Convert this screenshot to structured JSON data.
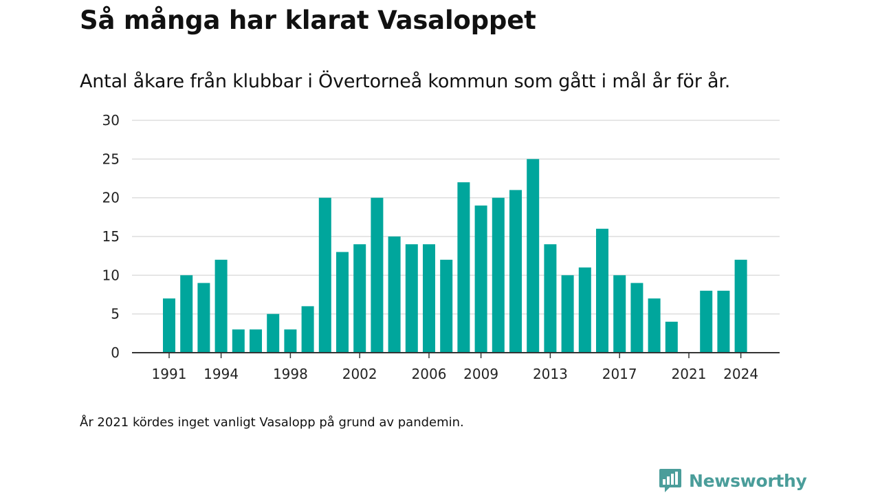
{
  "title": "Så många har klarat Vasaloppet",
  "subtitle": "Antal åkare från klubbar i Övertorneå kommun som gått i mål år för år.",
  "note": "År 2021 kördes inget vanligt Vasalopp på grund av pandemin.",
  "brand": {
    "name": "Newsworthy",
    "icon": "newsworthy-logo-icon",
    "color": "#4a9d9a"
  },
  "chart_data": {
    "type": "bar",
    "x": [
      1991,
      1992,
      1993,
      1994,
      1995,
      1996,
      1997,
      1998,
      1999,
      2000,
      2001,
      2002,
      2003,
      2004,
      2005,
      2006,
      2007,
      2008,
      2009,
      2010,
      2011,
      2012,
      2013,
      2014,
      2015,
      2016,
      2017,
      2018,
      2019,
      2020,
      2021,
      2022,
      2023,
      2024
    ],
    "values": [
      7,
      10,
      9,
      12,
      3,
      3,
      5,
      3,
      6,
      20,
      13,
      14,
      20,
      15,
      14,
      14,
      12,
      22,
      19,
      20,
      21,
      25,
      14,
      10,
      11,
      16,
      10,
      9,
      7,
      4,
      0,
      8,
      8,
      12
    ],
    "x_tick_labels": [
      1991,
      1994,
      1998,
      2002,
      2006,
      2009,
      2013,
      2017,
      2021,
      2024
    ],
    "y_ticks": [
      0,
      5,
      10,
      15,
      20,
      25,
      30
    ],
    "ylim": [
      0,
      30
    ],
    "xlabel": "",
    "ylabel": "",
    "grid": true,
    "bar_color": "#00a69c",
    "grid_color": "#dddddd",
    "axis_color": "#333333"
  }
}
